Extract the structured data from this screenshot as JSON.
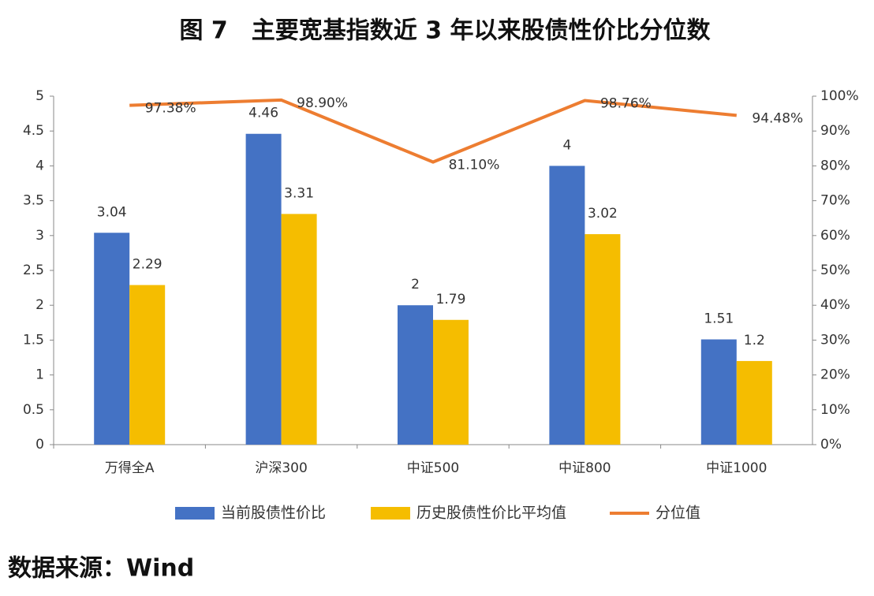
{
  "chart_data": {
    "type": "bar-line",
    "title": "图 7　主要宽基指数近 3 年以来股债性价比分位数",
    "source": "数据来源：Wind",
    "categories": [
      "万得全A",
      "沪深300",
      "中证500",
      "中证800",
      "中证1000"
    ],
    "series": [
      {
        "name": "当前股债性价比",
        "type": "bar",
        "color": "#4472c4",
        "values": [
          3.04,
          4.46,
          2,
          4,
          1.51
        ]
      },
      {
        "name": "历史股债性价比平均值",
        "type": "bar",
        "color": "#f5bd00",
        "values": [
          2.29,
          3.31,
          1.79,
          3.02,
          1.2
        ]
      },
      {
        "name": "分位值",
        "type": "line",
        "axis": "y2",
        "color": "#ed7d31",
        "values": [
          97.38,
          98.9,
          81.1,
          98.76,
          94.48
        ],
        "value_labels": [
          "97.38%",
          "98.90%",
          "81.10%",
          "98.76%",
          "94.48%"
        ]
      }
    ],
    "ylim": [
      0,
      5
    ],
    "yticks": [
      0,
      0.5,
      1,
      1.5,
      2,
      2.5,
      3,
      3.5,
      4,
      4.5,
      5
    ],
    "y2lim": [
      0,
      100
    ],
    "y2ticks": [
      {
        "value": 0,
        "label": "0%"
      },
      {
        "value": 10,
        "label": "10%"
      },
      {
        "value": 20,
        "label": "20%"
      },
      {
        "value": 30,
        "label": "30%"
      },
      {
        "value": 40,
        "label": "40%"
      },
      {
        "value": 50,
        "label": "50%"
      },
      {
        "value": 60,
        "label": "60%"
      },
      {
        "value": 70,
        "label": "70%"
      },
      {
        "value": 80,
        "label": "80%"
      },
      {
        "value": 90,
        "label": "90%"
      },
      {
        "value": 100,
        "label": "100%"
      }
    ],
    "grid": false,
    "legend": "bottom"
  }
}
